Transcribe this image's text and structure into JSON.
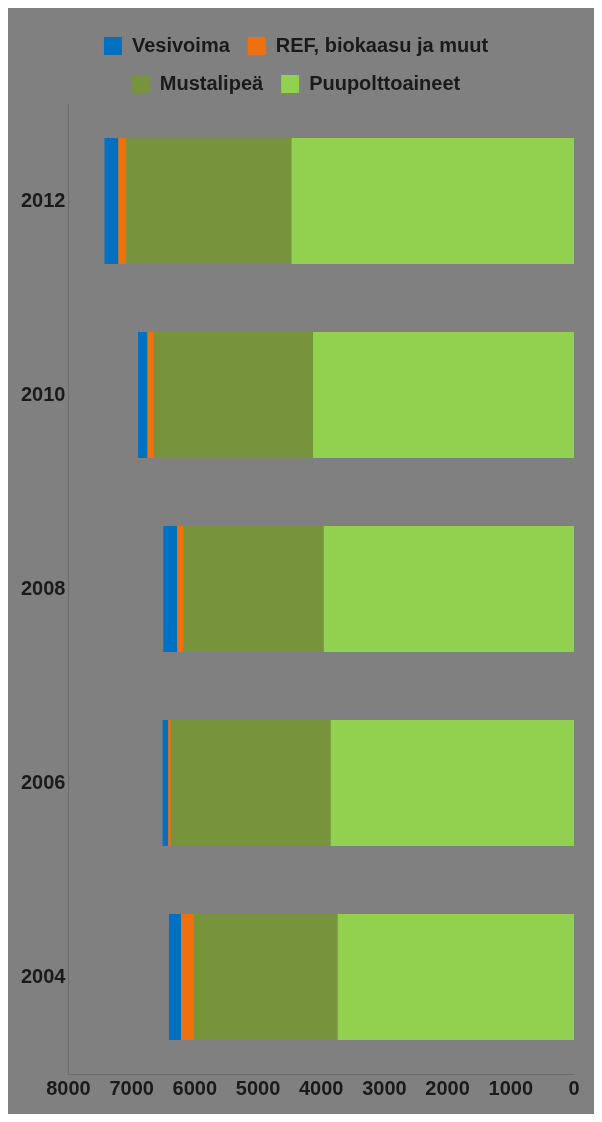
{
  "chart_data": {
    "type": "bar",
    "orientation": "horizontal",
    "stacked": true,
    "categories": [
      "2012",
      "2010",
      "2008",
      "2006",
      "2004"
    ],
    "series": [
      {
        "name": "Puupolttoaineet",
        "color": "#92d050",
        "values": [
          4470,
          4130,
          3960,
          3850,
          3740
        ]
      },
      {
        "name": "Mustalipeä",
        "color": "#77933c",
        "values": [
          2620,
          2520,
          2220,
          2530,
          2270
        ]
      },
      {
        "name": "REF, biokaasu ja muut",
        "color": "#f07010",
        "values": [
          120,
          100,
          100,
          40,
          210
        ]
      },
      {
        "name": "Vesivoima",
        "color": "#0070c0",
        "values": [
          220,
          150,
          220,
          90,
          190
        ]
      }
    ],
    "xlim": [
      8000,
      0
    ],
    "xticks": [
      8000,
      7000,
      6000,
      5000,
      4000,
      3000,
      2000,
      1000,
      0
    ],
    "grid": false,
    "legend": "top"
  }
}
